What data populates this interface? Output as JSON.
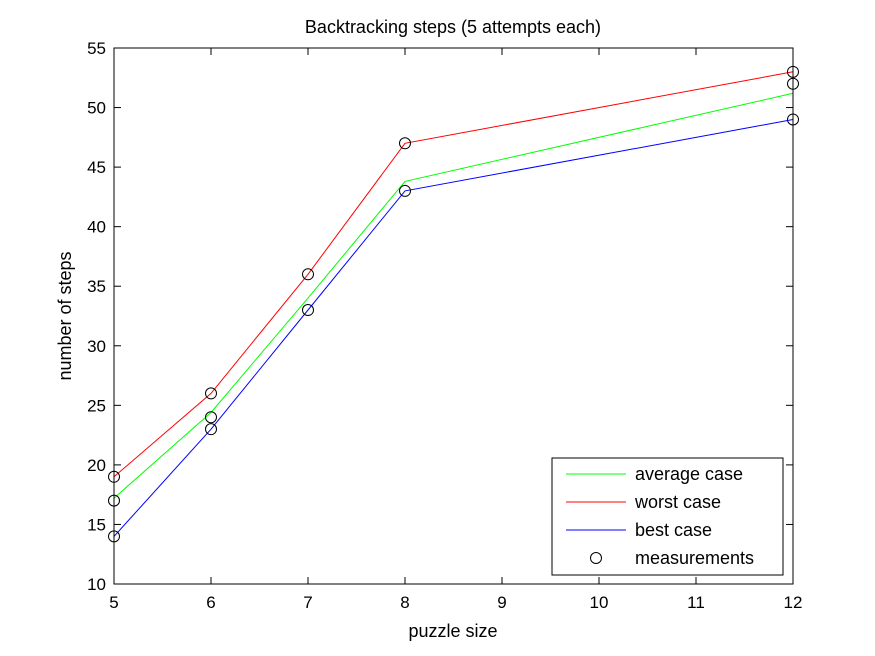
{
  "chart_data": {
    "type": "line",
    "title": "Backtracking steps (5 attempts each)",
    "xlabel": "puzzle size",
    "ylabel": "number of steps",
    "xlim": [
      5,
      12
    ],
    "ylim": [
      10,
      55
    ],
    "xticks": [
      "5",
      "6",
      "7",
      "8",
      "9",
      "10",
      "11",
      "12"
    ],
    "yticks": [
      "10",
      "15",
      "20",
      "25",
      "30",
      "35",
      "40",
      "45",
      "50",
      "55"
    ],
    "grid": false,
    "legend_position": "bottom-right",
    "x": [
      5,
      6,
      7,
      8,
      12
    ],
    "series": [
      {
        "name": "average case",
        "color": "#00ff00",
        "values": [
          17.2,
          24.4,
          34.0,
          43.8,
          51.2
        ]
      },
      {
        "name": "worst case",
        "color": "#ff0000",
        "values": [
          19,
          26,
          36,
          47,
          53
        ]
      },
      {
        "name": "best case",
        "color": "#0000ff",
        "values": [
          14,
          23,
          33,
          43,
          49
        ]
      }
    ],
    "measurements": {
      "name": "measurements",
      "marker": "circle",
      "color": "#000000",
      "points": [
        [
          5,
          14
        ],
        [
          5,
          17
        ],
        [
          5,
          19
        ],
        [
          6,
          23
        ],
        [
          6,
          24
        ],
        [
          6,
          26
        ],
        [
          7,
          33
        ],
        [
          7,
          36
        ],
        [
          8,
          43
        ],
        [
          8,
          47
        ],
        [
          12,
          49
        ],
        [
          12,
          52
        ],
        [
          12,
          53
        ]
      ]
    }
  }
}
